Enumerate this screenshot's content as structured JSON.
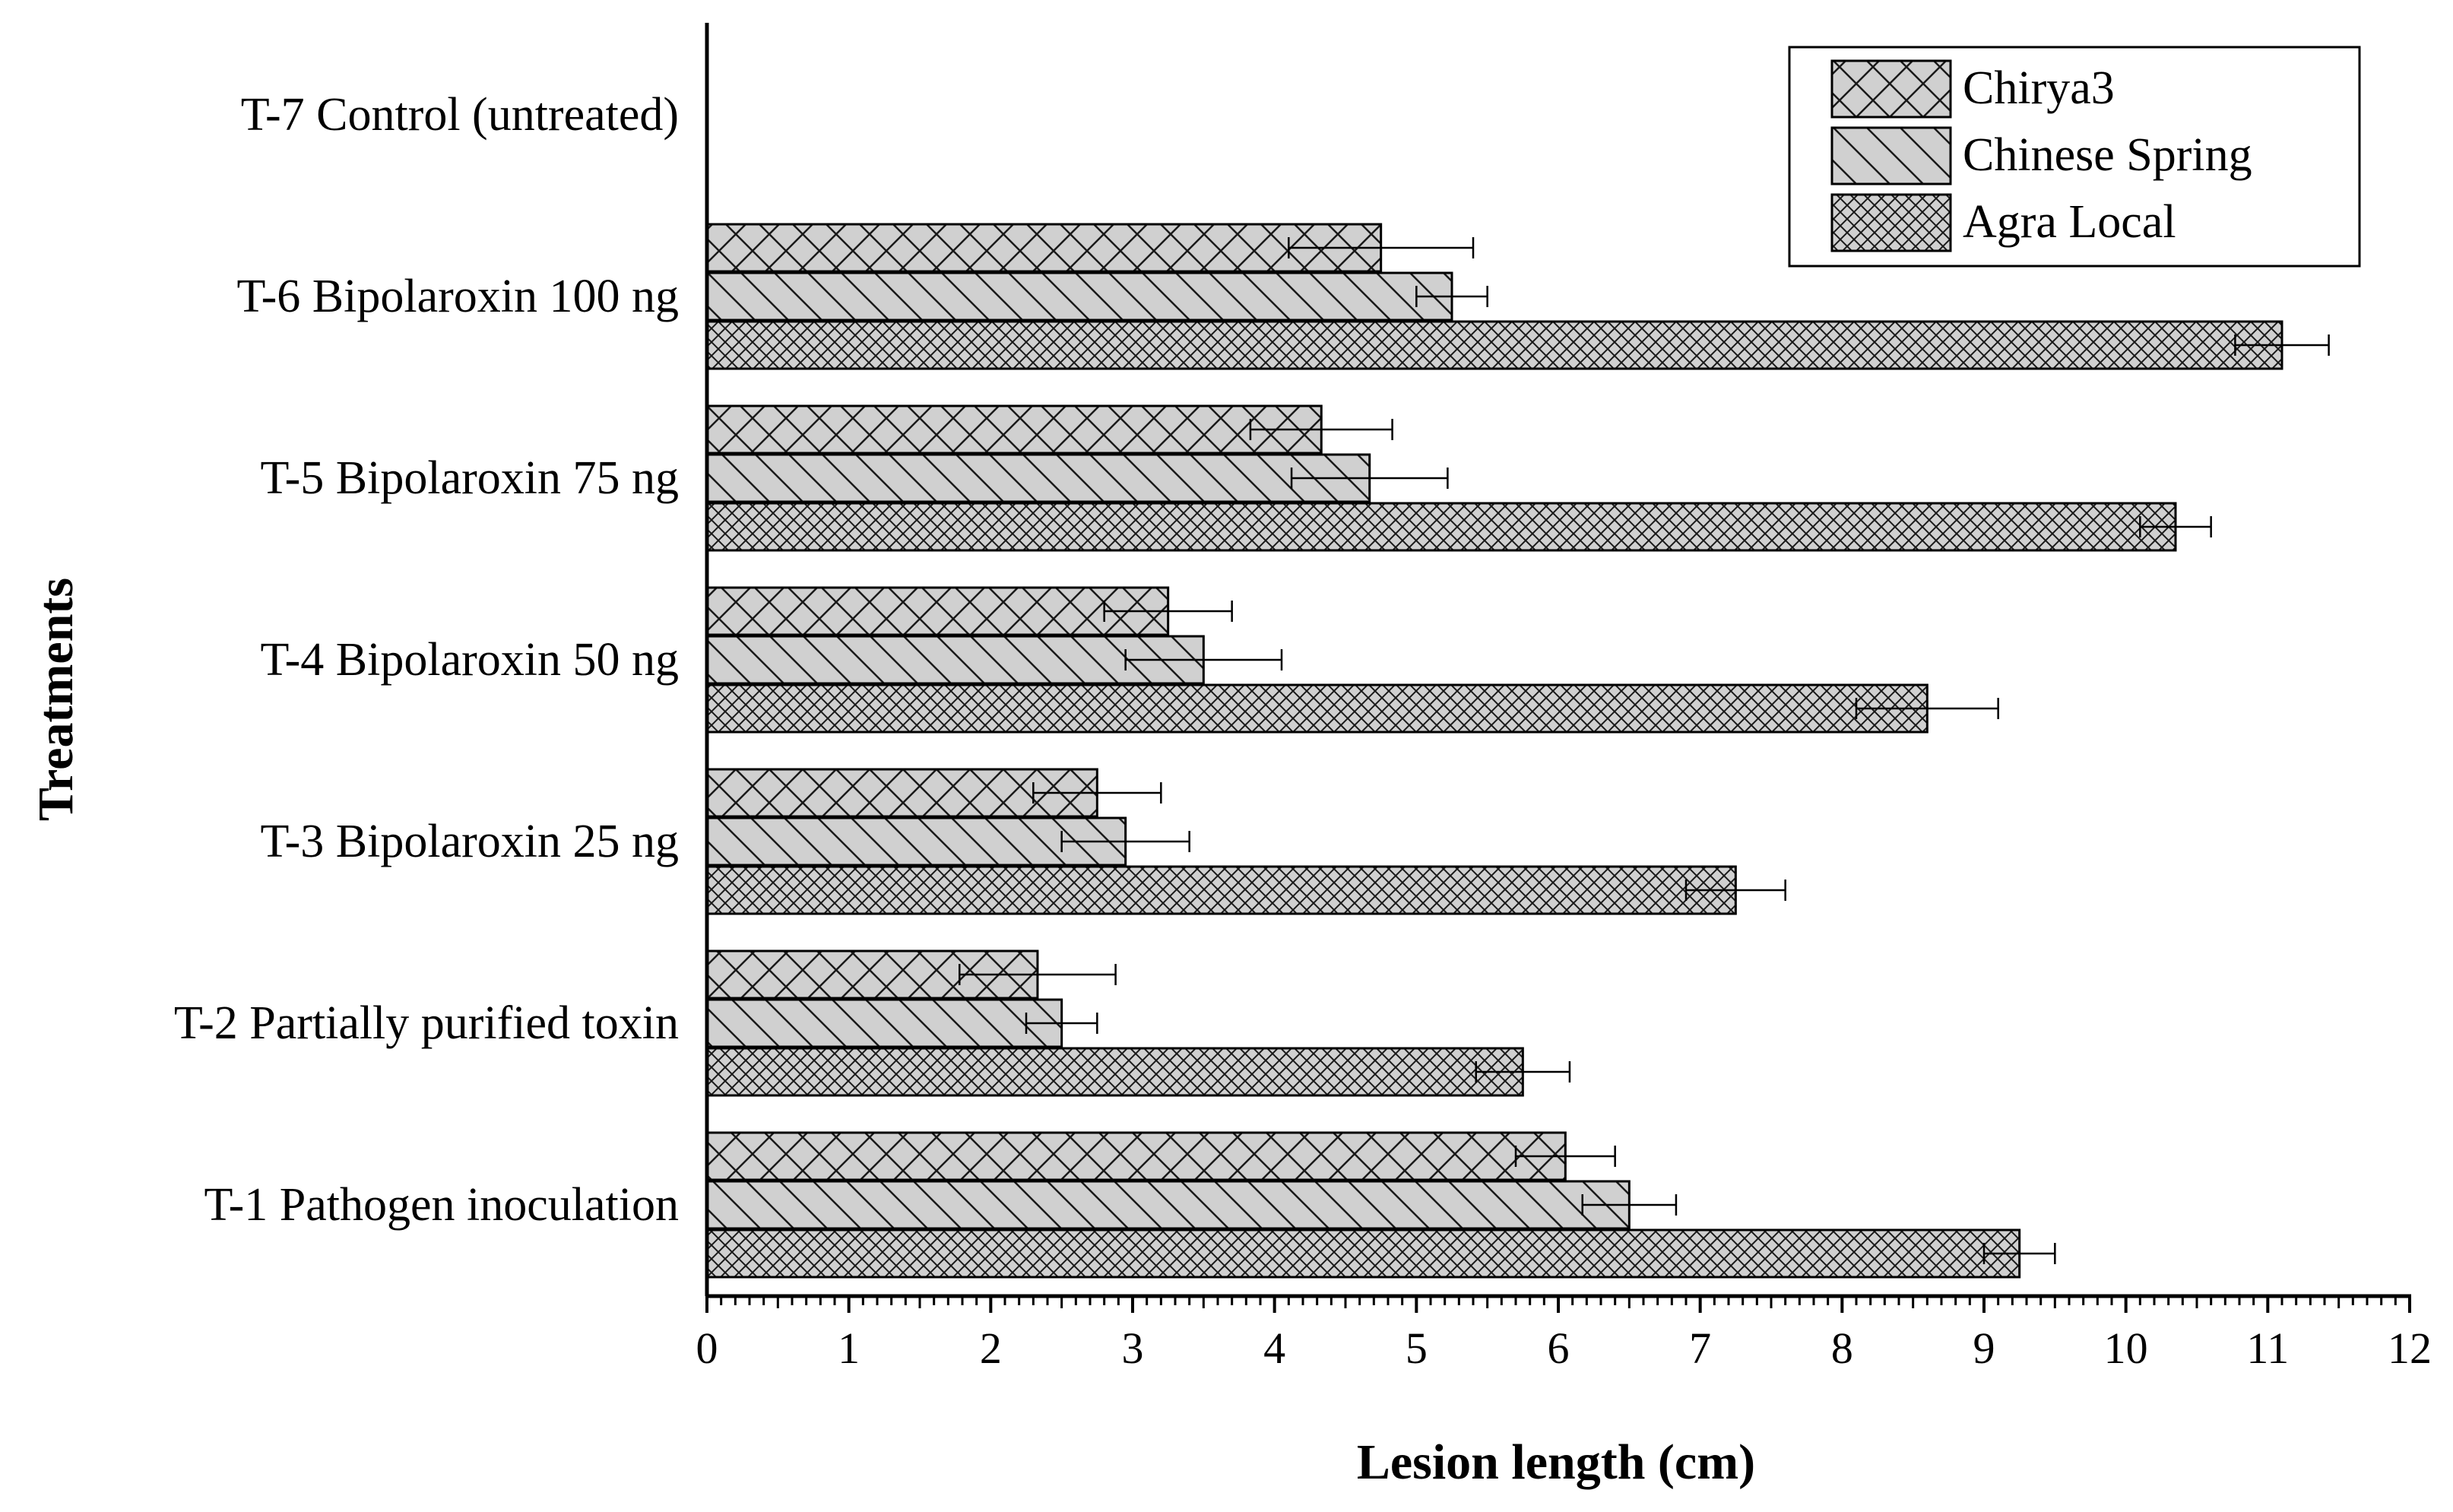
{
  "chart_data": {
    "type": "bar",
    "orientation": "horizontal",
    "title": "",
    "xlabel": "Lesion length (cm)",
    "ylabel": "Treatments",
    "xlim": [
      0,
      12
    ],
    "x_ticks": [
      "0",
      "1",
      "2",
      "3",
      "4",
      "5",
      "6",
      "7",
      "8",
      "9",
      "10",
      "11",
      "12"
    ],
    "grid": false,
    "legend_position": "top-right",
    "categories": [
      "T-1 Pathogen inoculation",
      "T-2 Partially purified toxin",
      "T-3 Bipolaroxin 25 ng",
      "T-4 Bipolaroxin 50 ng",
      "T-5 Bipolaroxin 75 ng",
      "T-6 Bipolaroxin 100 ng",
      "T-7 Control (untreated)"
    ],
    "series": [
      {
        "name": "Chirya3",
        "pattern": "crosshatch",
        "values": [
          6.05,
          2.33,
          2.75,
          3.25,
          4.33,
          4.75,
          0
        ],
        "errors": [
          0.35,
          0.55,
          0.45,
          0.45,
          0.5,
          0.65,
          0
        ]
      },
      {
        "name": "Chinese Spring",
        "pattern": "diagonal",
        "values": [
          6.5,
          2.5,
          2.95,
          3.5,
          4.67,
          5.25,
          0
        ],
        "errors": [
          0.33,
          0.25,
          0.45,
          0.55,
          0.55,
          0.25,
          0
        ]
      },
      {
        "name": "Agra Local",
        "pattern": "fine-crosshatch",
        "values": [
          9.25,
          5.75,
          7.25,
          8.6,
          10.35,
          11.1,
          0
        ],
        "errors": [
          0.25,
          0.33,
          0.35,
          0.5,
          0.25,
          0.33,
          0
        ]
      }
    ],
    "colors": {
      "bar_fill": "#d0d0d0",
      "bar_stroke": "#000000",
      "hatch": "#1a1a1a"
    }
  }
}
